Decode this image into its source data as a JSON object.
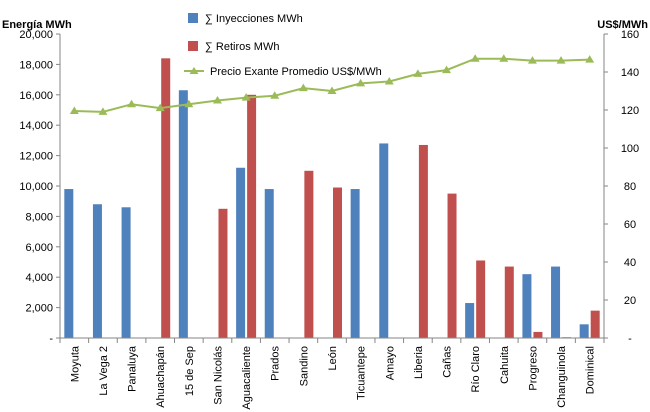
{
  "chart_data": {
    "type": "bar",
    "title": "",
    "ylabel_left": "Energía MWh",
    "ylabel_right": "US$/MWh",
    "ylim_left": [
      0,
      20000
    ],
    "ylim_right": [
      0,
      160
    ],
    "left_ticks": [
      "-",
      "2,000",
      "4,000",
      "6,000",
      "8,000",
      "10,000",
      "12,000",
      "14,000",
      "16,000",
      "18,000",
      "20,000"
    ],
    "right_ticks": [
      "-",
      "20",
      "40",
      "60",
      "80",
      "100",
      "120",
      "140",
      "160"
    ],
    "categories": [
      "Moyuta",
      "La Vega 2",
      "Panaluya",
      "Ahuachapán",
      "15 de Sep",
      "San Nicolás",
      "Aguacaliente",
      "Prados",
      "Sandino",
      "León",
      "Ticuantepe",
      "Amayo",
      "Liberia",
      "Cañas",
      "Río Claro",
      "Cahuita",
      "Progreso",
      "Changuinola",
      "Dominical"
    ],
    "legend_position": "top",
    "series": [
      {
        "name": "∑ Inyecciones MWh",
        "kind": "bar",
        "axis": "left",
        "color": "#4F81BD",
        "values": [
          9800,
          8800,
          8600,
          0,
          16300,
          0,
          11200,
          9800,
          0,
          0,
          9800,
          12800,
          0,
          0,
          2300,
          0,
          4200,
          4700,
          900
        ]
      },
      {
        "name": "∑ Retiros MWh",
        "kind": "bar",
        "axis": "left",
        "color": "#C0504D",
        "values": [
          0,
          0,
          0,
          18400,
          0,
          8500,
          16000,
          0,
          11000,
          9900,
          0,
          0,
          12700,
          9500,
          5100,
          4700,
          400,
          50,
          1800
        ]
      },
      {
        "name": "Precio Exante Promedio US$/MWh",
        "kind": "line",
        "axis": "right",
        "color": "#9BBB59",
        "values": [
          119.5,
          119,
          123,
          121,
          123,
          125,
          126.5,
          127.5,
          131.5,
          130,
          134,
          135,
          139,
          141,
          147,
          147,
          146,
          146,
          146.5
        ]
      }
    ]
  }
}
